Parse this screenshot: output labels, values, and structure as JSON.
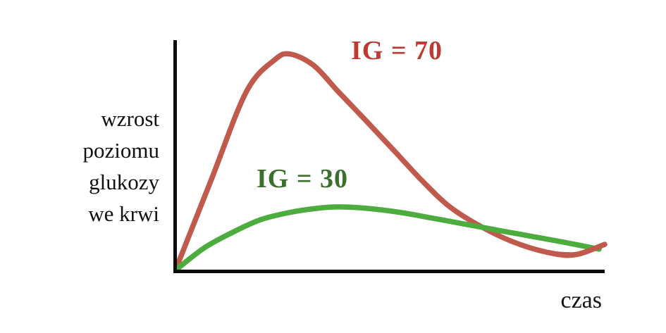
{
  "page": {
    "background_color": "#ffffff",
    "text_color": "#111111"
  },
  "chart_data": {
    "type": "line",
    "title": "",
    "xlabel": "czas",
    "ylabel": "wzrost poziomu glukozy we krwi",
    "ylabel_lines": [
      "wzrost",
      "poziomu",
      "glukozy",
      "we krwi"
    ],
    "axes": {
      "color": "#0c0c0c",
      "grid": false,
      "ticks": "none",
      "x_range": [
        0,
        100
      ],
      "y_range": [
        0,
        100
      ],
      "units": "arbitrary"
    },
    "legend_position": "inline-annotations",
    "series": [
      {
        "name": "IG = 70",
        "label": "IG = 70",
        "curve_color": "#c05a4c",
        "label_color": "#bc3b33",
        "tail_overlap_index": 13,
        "points": [
          [
            0,
            0.9
          ],
          [
            8.2,
            39.8
          ],
          [
            16.4,
            78.4
          ],
          [
            23.0,
            92.3
          ],
          [
            26.6,
            94.8
          ],
          [
            32.1,
            89.8
          ],
          [
            37.8,
            78.4
          ],
          [
            44.4,
            65.4
          ],
          [
            51.0,
            52.2
          ],
          [
            57.6,
            38.9
          ],
          [
            64.1,
            27.5
          ],
          [
            72.4,
            17.9
          ],
          [
            80.6,
            11.1
          ],
          [
            88.8,
            7.1
          ],
          [
            93.8,
            7.1
          ],
          [
            100,
            11.4
          ]
        ]
      },
      {
        "name": "IG = 30",
        "label": "IG = 30",
        "curve_color": "#4cad3e",
        "label_color": "#3d6f2c",
        "points": [
          [
            0,
            0.3
          ],
          [
            6.6,
            9.9
          ],
          [
            13.2,
            16.7
          ],
          [
            19.7,
            22.2
          ],
          [
            26.3,
            25.3
          ],
          [
            32.9,
            27.2
          ],
          [
            37.8,
            27.8
          ],
          [
            44.4,
            27.2
          ],
          [
            52.6,
            25.3
          ],
          [
            60.9,
            22.5
          ],
          [
            70.7,
            19.1
          ],
          [
            80.6,
            15.7
          ],
          [
            90.5,
            12.3
          ],
          [
            98.7,
            9.3
          ]
        ]
      }
    ]
  }
}
